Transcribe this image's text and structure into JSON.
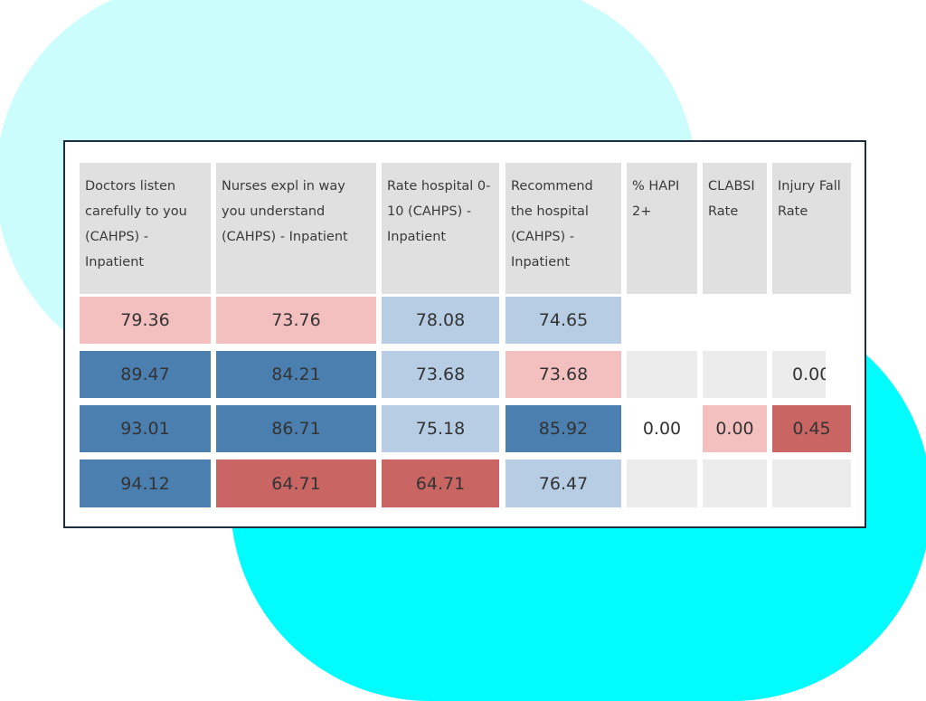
{
  "colors": {
    "header": "#e0e0e0",
    "light_pink": "#f4bfbf",
    "dark_red": "#c96664",
    "light_blue": "#b6cde4",
    "dark_blue": "#4a7fb0",
    "empty": "#ececec",
    "blank": "#ffffff"
  },
  "table": {
    "headers": [
      "Doctors listen carefully to you (CAHPS) - Inpatient",
      "Nurses expl in way you understand (CAHPS) - Inpatient",
      "Rate hospital 0-10 (CAHPS) - Inpatient",
      "Recommend the hospital (CAHPS) - Inpatient",
      "% HAPI 2+",
      "CLABSI Rate",
      "Injury Fall Rate"
    ],
    "rows": [
      {
        "values": [
          "79.36",
          "73.76",
          "78.08",
          "74.65",
          "",
          "",
          ""
        ],
        "fills": [
          "light_pink",
          "light_pink",
          "light_blue",
          "light_blue",
          "blank",
          "blank",
          "blank"
        ]
      },
      {
        "values": [
          "89.47",
          "84.21",
          "73.68",
          "73.68",
          "",
          "",
          "0.00"
        ],
        "fills": [
          "dark_blue",
          "dark_blue",
          "light_blue",
          "light_pink",
          "empty",
          "empty",
          "empty"
        ]
      },
      {
        "values": [
          "93.01",
          "86.71",
          "75.18",
          "85.92",
          "0.00",
          "0.00",
          "0.45"
        ],
        "fills": [
          "dark_blue",
          "dark_blue",
          "light_blue",
          "dark_blue",
          "blank",
          "light_pink",
          "dark_red"
        ]
      },
      {
        "values": [
          "94.12",
          "64.71",
          "64.71",
          "76.47",
          "",
          "",
          ""
        ],
        "fills": [
          "dark_blue",
          "dark_red",
          "dark_red",
          "light_blue",
          "empty",
          "empty",
          "empty"
        ]
      }
    ]
  }
}
